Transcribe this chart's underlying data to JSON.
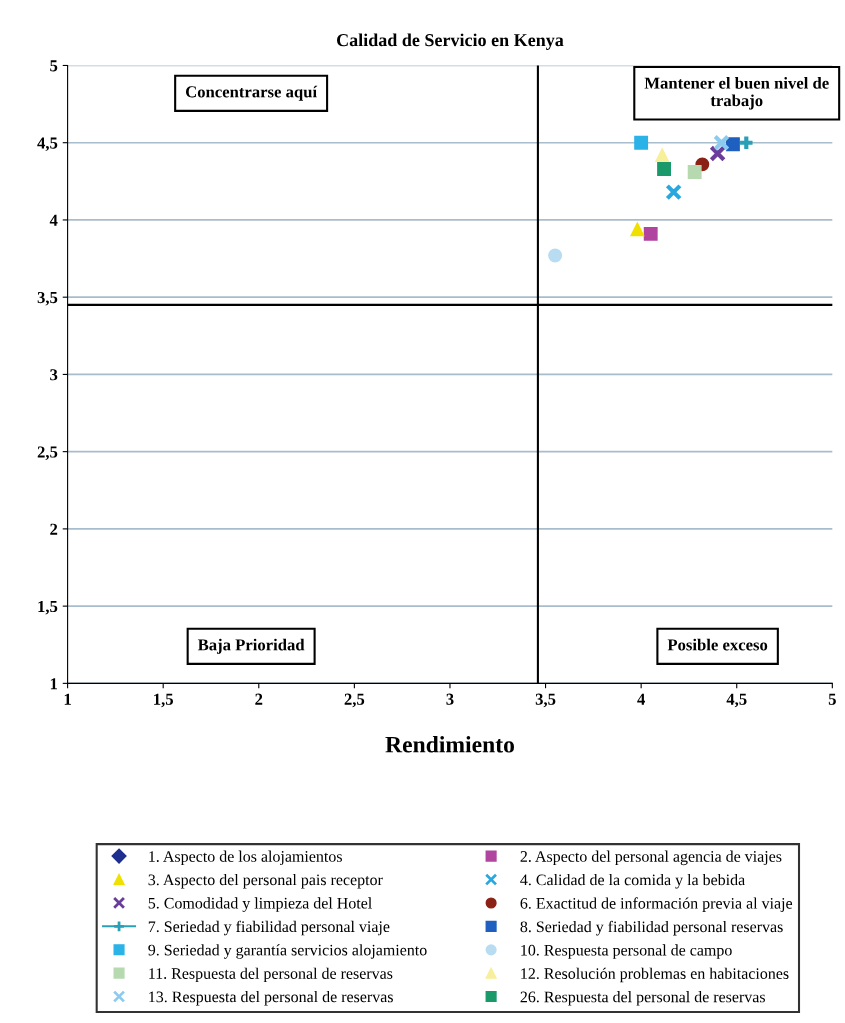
{
  "chart_data": {
    "type": "scatter",
    "title": "Calidad de Servicio en Kenya",
    "xlabel": "Rendimiento",
    "xlim": [
      1,
      5
    ],
    "ylim": [
      1,
      5
    ],
    "xticks": [
      1,
      {
        "value": 1.5,
        "label": "1,5"
      },
      2,
      {
        "value": 2.5,
        "label": "2,5"
      },
      3,
      {
        "value": 3.5,
        "label": "3,5"
      },
      4,
      {
        "value": 4.5,
        "label": "4,5"
      },
      5
    ],
    "yticks": [
      1,
      {
        "value": 1.5,
        "label": "1,5"
      },
      2,
      {
        "value": 2.5,
        "label": "2,5"
      },
      3,
      {
        "value": 3.5,
        "label": "3,5"
      },
      4,
      {
        "value": 4.5,
        "label": "4,5"
      },
      5
    ],
    "grid": "y",
    "legend": "bottom",
    "ref_lines": [
      {
        "axis": "x",
        "value": 3.46,
        "color": "#000000"
      },
      {
        "axis": "y",
        "value": 3.45,
        "color": "#000000"
      }
    ],
    "annotations": [
      "Concentrarse aquí",
      "Mantener el buen nivel de trabajo",
      "Baja Prioridad",
      "Posible exceso"
    ],
    "series": [
      {
        "name": "1. Aspecto de los alojamientos",
        "color": "#1f2f8f",
        "marker": "diamond",
        "x": [
          null
        ],
        "values": [
          null
        ]
      },
      {
        "name": "2. Aspecto del personal agencia de viajes",
        "color": "#b0449e",
        "marker": "square",
        "x": [
          4.05
        ],
        "values": [
          3.91
        ]
      },
      {
        "name": "3. Aspecto del personal pais receptor",
        "color": "#f0e000",
        "marker": "triangle",
        "x": [
          3.98
        ],
        "values": [
          3.94
        ]
      },
      {
        "name": "4. Calidad de la comida y la bebida",
        "color": "#29a8e0",
        "marker": "cross",
        "x": [
          4.17
        ],
        "values": [
          4.18
        ]
      },
      {
        "name": "5. Comodidad y limpieza del Hotel",
        "color": "#6a3d9a",
        "marker": "cross",
        "x": [
          4.4
        ],
        "values": [
          4.43
        ]
      },
      {
        "name": "6. Exactitud de información previa al viaje",
        "color": "#8b2215",
        "marker": "circle",
        "x": [
          4.32
        ],
        "values": [
          4.36
        ]
      },
      {
        "name": "7. Seriedad y fiabilidad personal viaje",
        "color": "#2aa0b8",
        "marker": "plus",
        "line_style": "solid",
        "x": [
          4.55
        ],
        "values": [
          4.5
        ]
      },
      {
        "name": "8. Seriedad y fiabilidad personal reservas",
        "color": "#1f5fbf",
        "marker": "square",
        "x": [
          4.48
        ],
        "values": [
          4.49
        ]
      },
      {
        "name": "9. Seriedad y garantía servicios alojamiento",
        "color": "#2bb3e8",
        "marker": "square",
        "x": [
          4.0
        ],
        "values": [
          4.5
        ]
      },
      {
        "name": "10. Respuesta personal de campo",
        "color": "#b8dcf2",
        "marker": "circle",
        "x": [
          3.55
        ],
        "values": [
          3.77
        ]
      },
      {
        "name": "11. Respuesta del personal de reservas",
        "color": "#b6d9b0",
        "marker": "square",
        "x": [
          4.28
        ],
        "values": [
          4.31
        ]
      },
      {
        "name": "12. Resolución problemas en habitaciones",
        "color": "#f8ef9a",
        "marker": "triangle",
        "x": [
          4.11
        ],
        "values": [
          4.42
        ]
      },
      {
        "name": "13. Respuesta del personal de reservas",
        "color": "#8ccbf0",
        "marker": "cross",
        "x": [
          4.42
        ],
        "values": [
          4.5
        ]
      },
      {
        "name": "26. Respuesta del personal de reservas",
        "color": "#1a9a6a",
        "marker": "square",
        "x": [
          4.12
        ],
        "values": [
          4.33
        ]
      }
    ]
  }
}
